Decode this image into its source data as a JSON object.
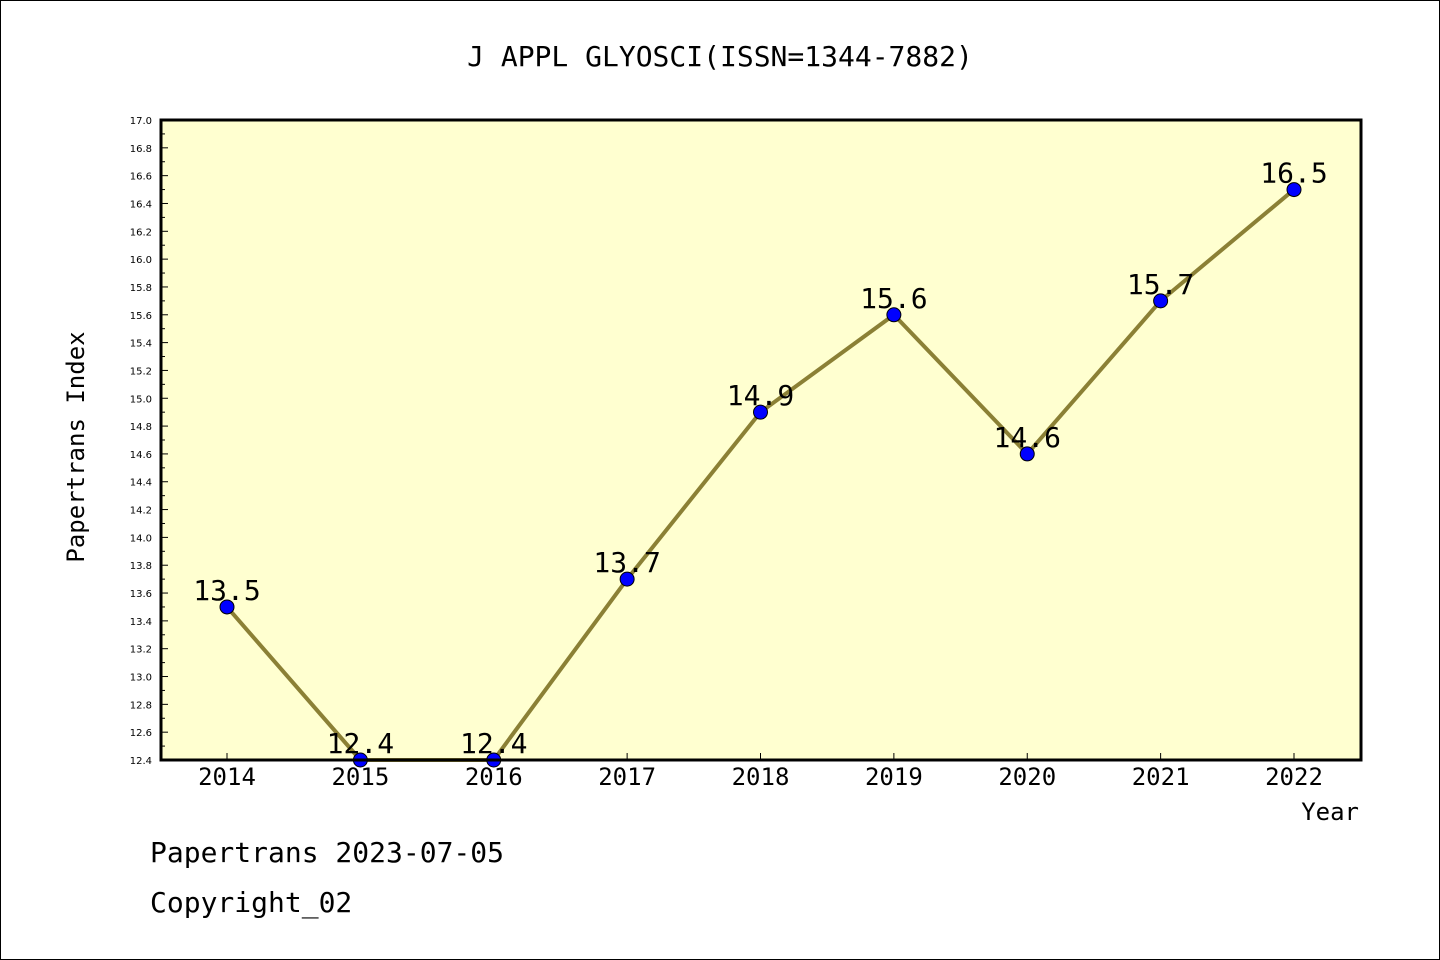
{
  "chart_data": {
    "type": "line",
    "title": "J APPL GLYOSCI(ISSN=1344-7882)",
    "xlabel": "Year",
    "ylabel": "Papertrans Index",
    "x": [
      "2014",
      "2015",
      "2016",
      "2017",
      "2018",
      "2019",
      "2020",
      "2021",
      "2022"
    ],
    "series": [
      {
        "values": [
          13.5,
          12.4,
          12.4,
          13.7,
          14.9,
          15.6,
          14.6,
          15.7,
          16.5
        ]
      }
    ],
    "data_labels": [
      "13.5",
      "12.4",
      "12.4",
      "13.7",
      "14.9",
      "15.6",
      "14.6",
      "15.7",
      "16.5"
    ],
    "ylim": [
      12.4,
      17.0
    ],
    "yticks": [
      "12.4",
      "12.6",
      "12.8",
      "13.0",
      "13.2",
      "13.4",
      "13.6",
      "13.8",
      "14.0",
      "14.2",
      "14.4",
      "14.6",
      "14.8",
      "15.0",
      "15.2",
      "15.4",
      "15.6",
      "15.8",
      "16.0",
      "16.2",
      "16.4",
      "16.6",
      "16.8",
      "17.0"
    ],
    "grid": false,
    "legend": "none",
    "colors": {
      "plot_background": "#ffffd0",
      "line": "#8b8035",
      "marker": "#0000ff"
    }
  },
  "footer": {
    "line1": "Papertrans 2023-07-05",
    "line2": "Copyright_02"
  }
}
